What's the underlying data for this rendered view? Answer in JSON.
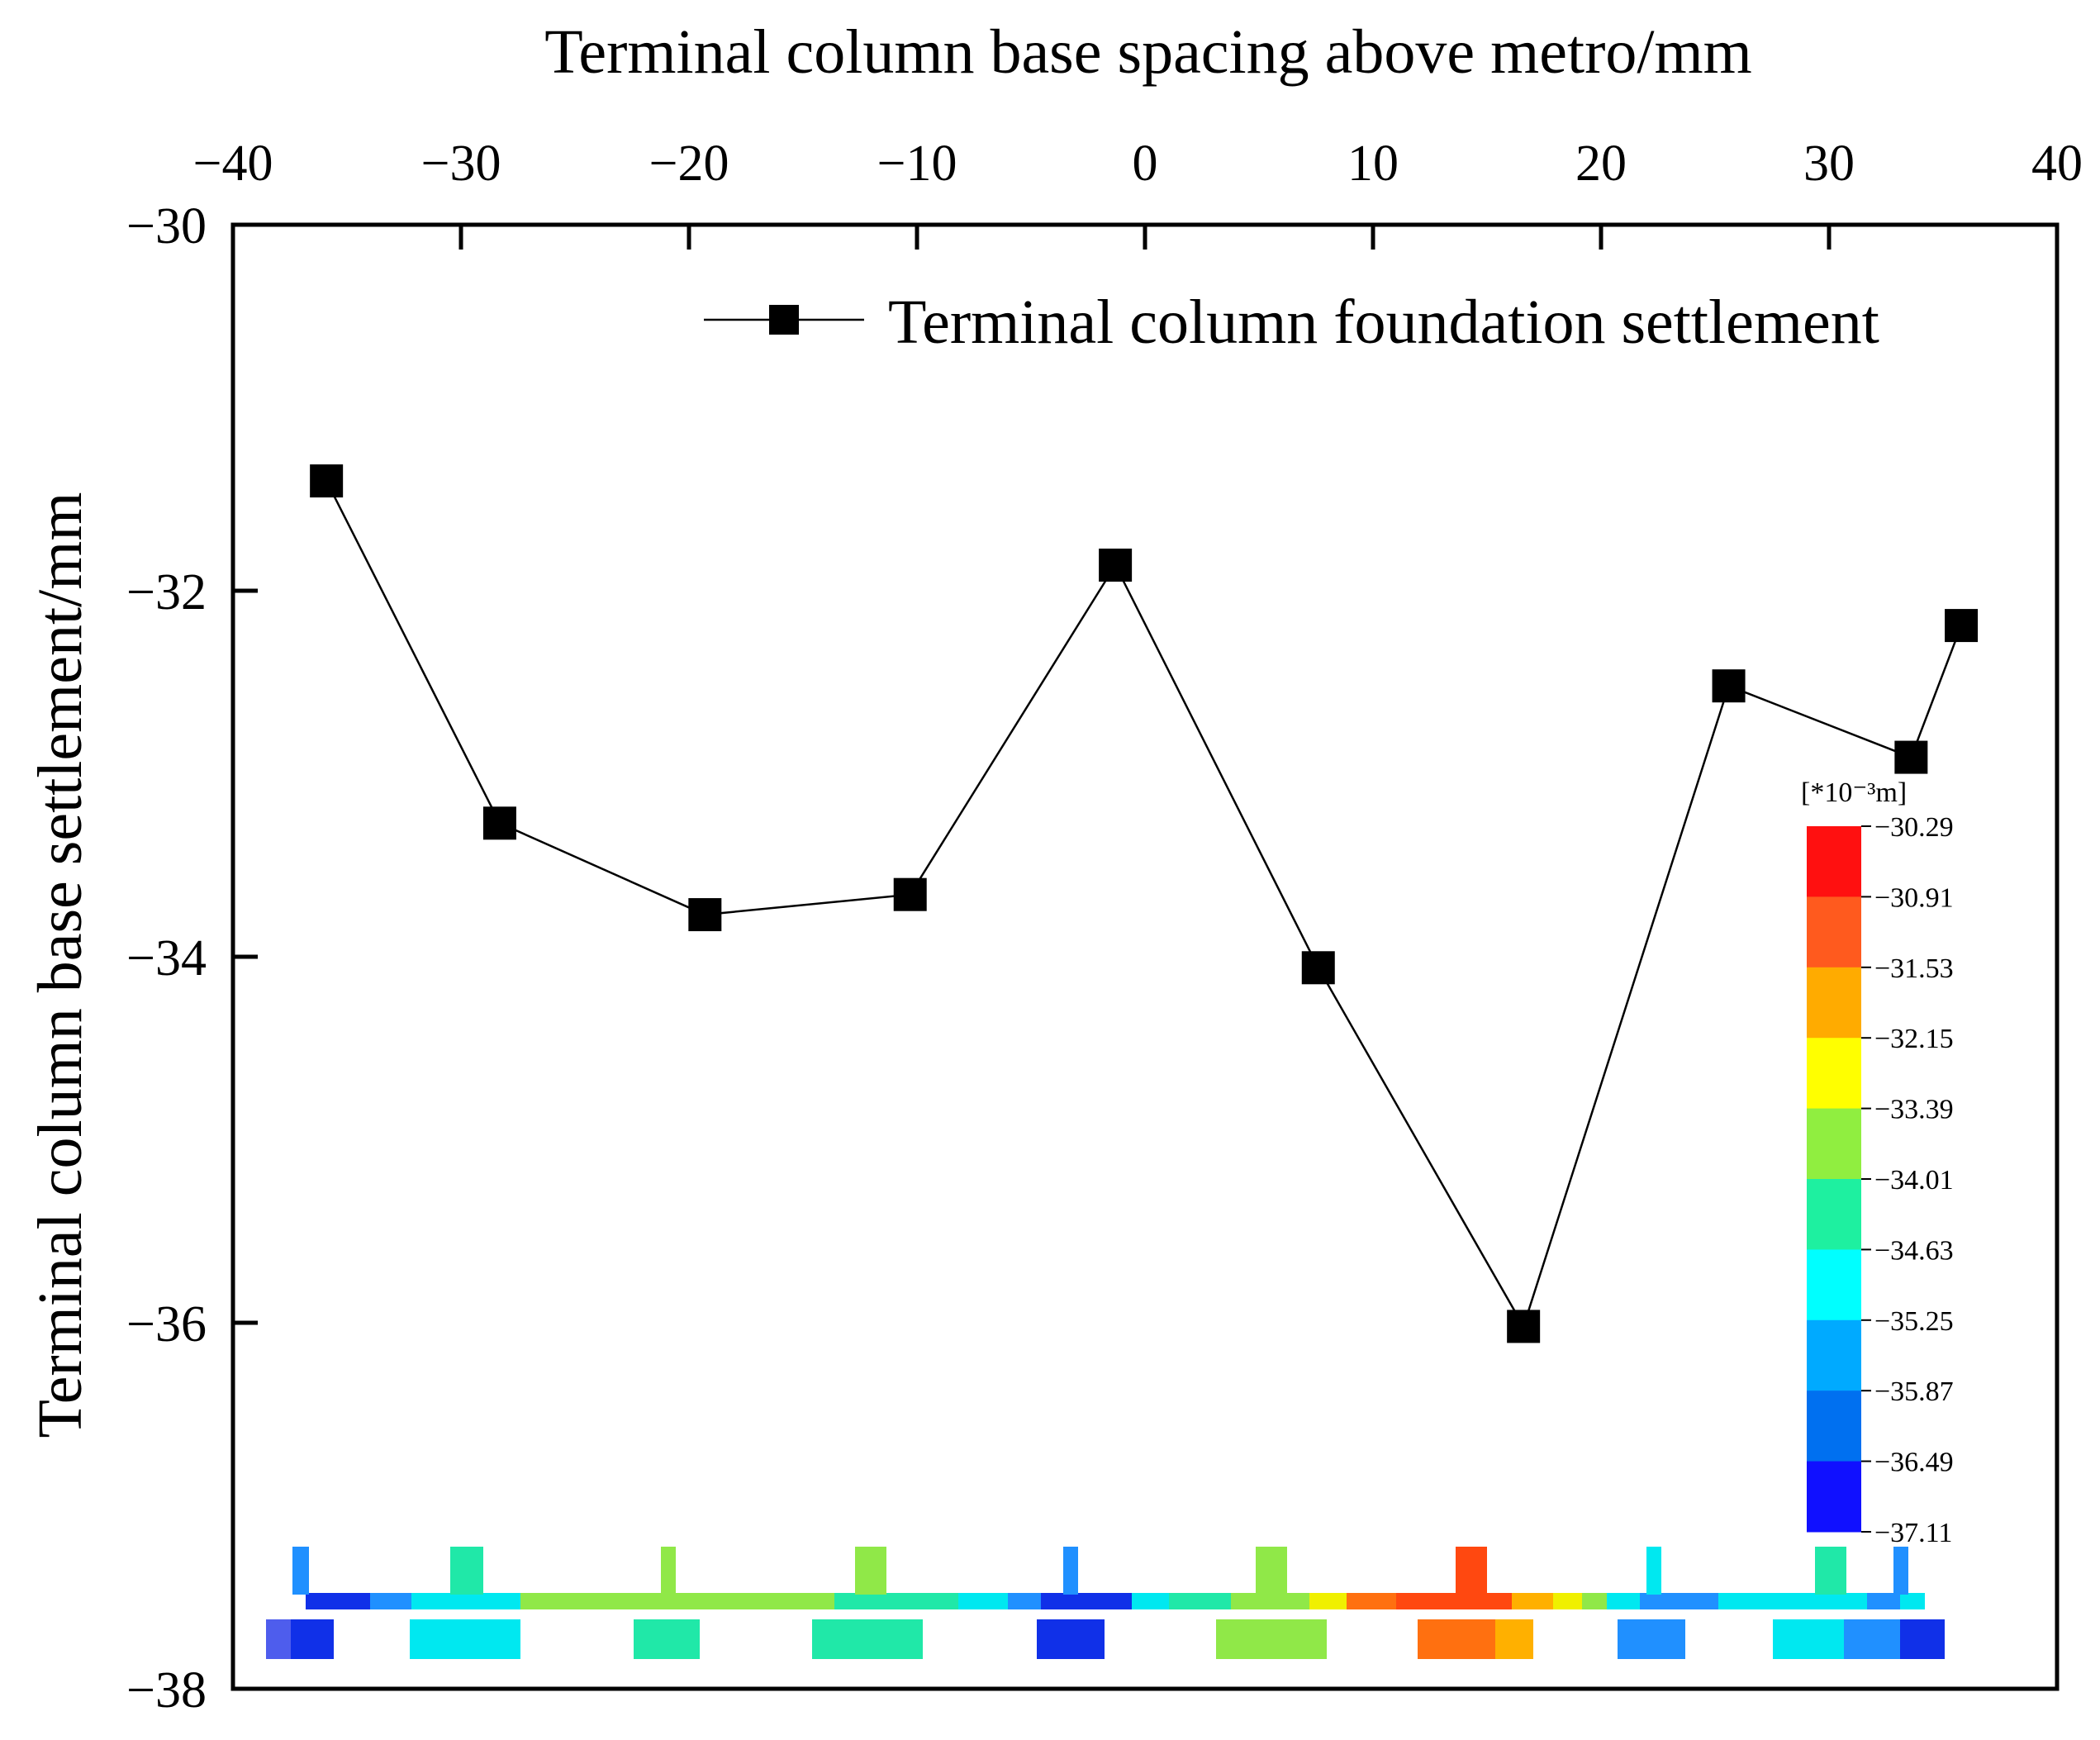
{
  "chart_data": {
    "type": "line",
    "title": "",
    "xlabel": "Terminal column base spacing above metro/mm",
    "ylabel": "Terminal column base settlement/mm",
    "xlim": [
      -40,
      40
    ],
    "ylim": [
      -38,
      -30
    ],
    "x_ticks": [
      -40,
      -30,
      -20,
      -10,
      0,
      10,
      20,
      30,
      40
    ],
    "x_tick_labels": [
      "−40",
      "−30",
      "−20",
      "−10",
      "0",
      "10",
      "20",
      "30",
      "40"
    ],
    "y_ticks": [
      -30,
      -32,
      -34,
      -36,
      -38
    ],
    "y_tick_labels": [
      "−30",
      "−32",
      "−34",
      "−36",
      "−38"
    ],
    "x_axis_position": "top",
    "legend_position": "top-right",
    "grid": false,
    "series": [
      {
        "name": "Terminal column foundation settlement",
        "marker": "square",
        "color": "#000000",
        "x": [
          -35.9,
          -28.3,
          -19.3,
          -10.3,
          -1.3,
          7.6,
          16.6,
          25.6,
          33.6,
          35.8
        ],
        "values": [
          -31.4,
          -33.27,
          -33.77,
          -33.66,
          -31.86,
          -34.06,
          -36.02,
          -32.52,
          -32.91,
          -32.19
        ]
      }
    ],
    "colorbar": {
      "unit_label": "[*10⁻³m]",
      "labels": [
        "−30.29",
        "−30.91",
        "−31.53",
        "−32.15",
        "−33.39",
        "−34.01",
        "−34.63",
        "−35.25",
        "−35.87",
        "−36.49",
        "−37.11"
      ],
      "colors": [
        "#ff1010",
        "#ff5a1e",
        "#ffab00",
        "#ffff00",
        "#90ee40",
        "#1ef0a0",
        "#00ffff",
        "#00aaff",
        "#0070f0",
        "#1010ff"
      ]
    },
    "inset_colors": {
      "blue_dark": "#1030e8",
      "blue": "#2090ff",
      "cyan": "#00e8f0",
      "teal": "#20e8a8",
      "green": "#90e848",
      "yellow": "#f0f000",
      "orange": "#ff7010",
      "red_orange": "#ff4810",
      "gold": "#ffb000"
    }
  }
}
